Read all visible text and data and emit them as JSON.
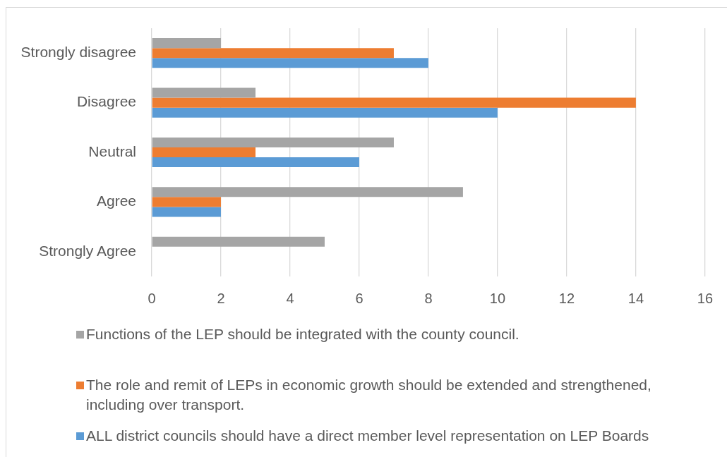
{
  "chart_data": {
    "type": "bar",
    "orientation": "horizontal",
    "categories": [
      "Strongly disagree",
      "Disagree",
      "Neutral",
      "Agree",
      "Strongly Agree"
    ],
    "series": [
      {
        "name": "Functions of the LEP should be integrated with the county council.",
        "color": "#a5a5a5",
        "values": [
          2,
          3,
          7,
          9,
          5
        ]
      },
      {
        "name": "The role and remit of LEPs in economic growth should be extended and strengthened, including over transport.",
        "color": "#ed7d31",
        "values": [
          7,
          14,
          3,
          2,
          0
        ]
      },
      {
        "name": "ALL district councils should have a direct member level representation on LEP Boards",
        "color": "#5b9bd5",
        "values": [
          8,
          10,
          6,
          2,
          0
        ]
      }
    ],
    "xlim": [
      0,
      16
    ],
    "xticks": [
      0,
      2,
      4,
      6,
      8,
      10,
      12,
      14,
      16
    ],
    "grid": "x",
    "legend": "bottom"
  }
}
